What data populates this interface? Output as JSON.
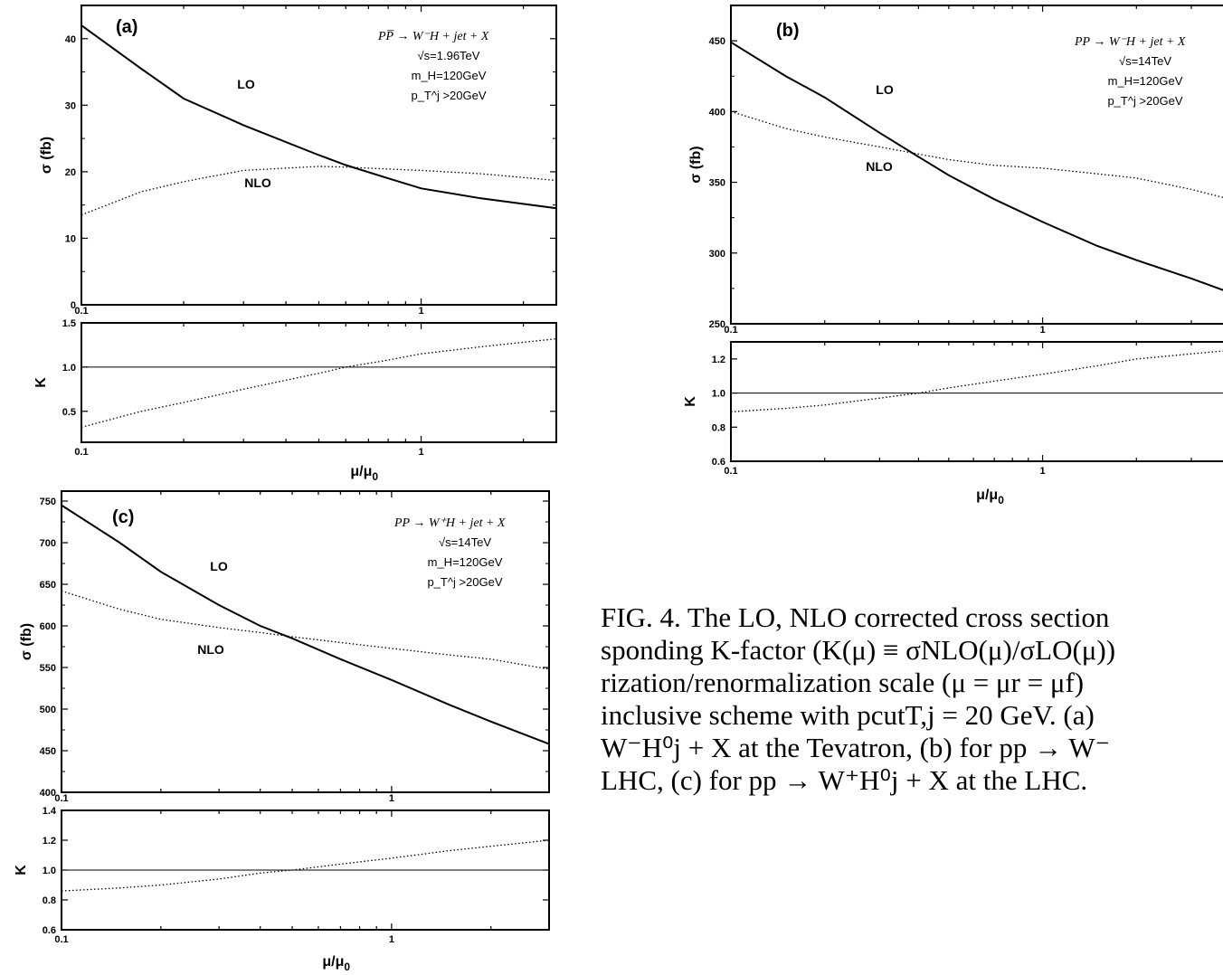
{
  "chart_data": [
    {
      "id": "a",
      "type": "line",
      "panel_label": "(a)",
      "process": "PP̅ → W⁻H + jet + X",
      "params": [
        "√s=1.96TeV",
        "m_H=120GeV",
        "p_T^j >20GeV"
      ],
      "x_scale": "log",
      "xlim": [
        0.1,
        2.5
      ],
      "main": {
        "ylabel": "σ (fb)",
        "ylim": [
          0,
          45
        ],
        "yticks": [
          0,
          10,
          20,
          30,
          40
        ],
        "xticks": [
          "0.1",
          "1"
        ],
        "series": [
          {
            "name": "LO",
            "style": "solid",
            "x": [
              0.1,
              0.15,
              0.2,
              0.3,
              0.5,
              0.6,
              0.8,
              1.0,
              1.5,
              2.5
            ],
            "y": [
              42,
              35.5,
              31,
              27,
              22.5,
              21,
              19,
              17.5,
              16,
              14.5
            ]
          },
          {
            "name": "NLO",
            "style": "dotted",
            "x": [
              0.1,
              0.15,
              0.2,
              0.3,
              0.5,
              0.6,
              0.8,
              1.0,
              1.5,
              2.5
            ],
            "y": [
              13.5,
              17,
              18.5,
              20.2,
              20.8,
              20.7,
              20.4,
              20.2,
              19.7,
              18.7
            ]
          }
        ]
      },
      "ratio": {
        "ylabel": "K",
        "ylim": [
          0.15,
          1.5
        ],
        "yticks": [
          "0.5",
          "1.0",
          "1.5"
        ],
        "xticks": [
          "0.1",
          "1"
        ],
        "xlabel": "μ/μ",
        "xlabel_sub": "0",
        "reference": 1.0,
        "series": {
          "x": [
            0.1,
            0.15,
            0.2,
            0.3,
            0.5,
            0.6,
            0.8,
            1.0,
            1.5,
            2.5
          ],
          "y": [
            0.32,
            0.5,
            0.6,
            0.75,
            0.93,
            1.0,
            1.08,
            1.15,
            1.23,
            1.32
          ]
        }
      }
    },
    {
      "id": "b",
      "type": "line",
      "panel_label": "(b)",
      "process": "PP → W⁻H + jet + X",
      "params": [
        "√s=14TeV",
        "m_H=120GeV",
        "p_T^j >20GeV"
      ],
      "x_scale": "log",
      "xlim": [
        0.1,
        4
      ],
      "main": {
        "ylabel": "σ (fb)",
        "ylim": [
          250,
          475
        ],
        "yticks": [
          250,
          300,
          350,
          400,
          450
        ],
        "xticks": [
          "0.1",
          "1"
        ],
        "series": [
          {
            "name": "LO",
            "style": "solid",
            "x": [
              0.1,
              0.15,
              0.2,
              0.3,
              0.4,
              0.5,
              0.7,
              1.0,
              1.5,
              2.0,
              3.0,
              4.0
            ],
            "y": [
              449,
              425,
              410,
              385,
              368,
              355,
              338,
              322,
              305,
              295,
              282,
              272
            ]
          },
          {
            "name": "NLO",
            "style": "dotted",
            "x": [
              0.1,
              0.15,
              0.2,
              0.3,
              0.4,
              0.5,
              0.7,
              1.0,
              1.5,
              2.0,
              3.0,
              4.0
            ],
            "y": [
              400,
              388,
              382,
              375,
              370,
              366,
              362,
              360,
              356,
              353,
              345,
              338
            ]
          }
        ]
      },
      "ratio": {
        "ylabel": "K",
        "ylim": [
          0.6,
          1.3
        ],
        "yticks": [
          "0.6",
          "0.8",
          "1.0",
          "1.2"
        ],
        "xticks": [
          "0.1",
          "1"
        ],
        "xlabel": "μ/μ",
        "xlabel_sub": "0",
        "reference": 1.0,
        "series": {
          "x": [
            0.1,
            0.15,
            0.2,
            0.3,
            0.4,
            0.5,
            0.7,
            1.0,
            1.5,
            2.0,
            3.0,
            4.0
          ],
          "y": [
            0.89,
            0.91,
            0.93,
            0.97,
            1.0,
            1.03,
            1.07,
            1.11,
            1.16,
            1.2,
            1.23,
            1.25
          ]
        }
      }
    },
    {
      "id": "c",
      "type": "line",
      "panel_label": "(c)",
      "process": "PP → W⁺H + jet + X",
      "params": [
        "√s=14TeV",
        "m_H=120GeV",
        "p_T^j >20GeV"
      ],
      "x_scale": "log",
      "xlim": [
        0.1,
        3
      ],
      "main": {
        "ylabel": "σ (fb)",
        "ylim": [
          400,
          762
        ],
        "yticks": [
          400,
          450,
          500,
          550,
          600,
          650,
          700,
          750
        ],
        "xticks": [
          "0.1",
          "1"
        ],
        "series": [
          {
            "name": "LO",
            "style": "solid",
            "x": [
              0.1,
              0.15,
              0.2,
              0.3,
              0.4,
              0.5,
              0.7,
              1.0,
              1.5,
              2.0,
              3.0
            ],
            "y": [
              745,
              700,
              665,
              625,
              600,
              585,
              560,
              535,
              505,
              485,
              458
            ]
          },
          {
            "name": "NLO",
            "style": "dotted",
            "x": [
              0.1,
              0.15,
              0.2,
              0.3,
              0.4,
              0.5,
              0.7,
              1.0,
              1.5,
              2.0,
              3.0
            ],
            "y": [
              642,
              620,
              608,
              598,
              592,
              587,
              580,
              573,
              565,
              560,
              548
            ]
          }
        ]
      },
      "ratio": {
        "ylabel": "K",
        "ylim": [
          0.6,
          1.4
        ],
        "yticks": [
          "0.6",
          "0.8",
          "1.0",
          "1.2",
          "1.4"
        ],
        "xticks": [
          "0.1",
          "1"
        ],
        "xlabel": "μ/μ",
        "xlabel_sub": "0",
        "reference": 1.0,
        "series": {
          "x": [
            0.1,
            0.15,
            0.2,
            0.3,
            0.4,
            0.5,
            0.7,
            1.0,
            1.5,
            2.0,
            3.0
          ],
          "y": [
            0.86,
            0.88,
            0.9,
            0.94,
            0.98,
            1.0,
            1.04,
            1.08,
            1.13,
            1.16,
            1.2
          ]
        }
      }
    }
  ],
  "caption": {
    "lines": [
      "FIG. 4.   The LO, NLO corrected cross section",
      "sponding K-factor (K(μ) ≡ σNLO(μ)/σLO(μ))",
      "rization/renormalization scale (μ = μr = μf)",
      "inclusive  scheme  with  pcutT,j = 20 GeV.  (a)",
      "W⁻H⁰j + X at the Tevatron, (b) for pp → W⁻",
      "LHC, (c) for pp → W⁺H⁰j + X at the LHC."
    ]
  }
}
